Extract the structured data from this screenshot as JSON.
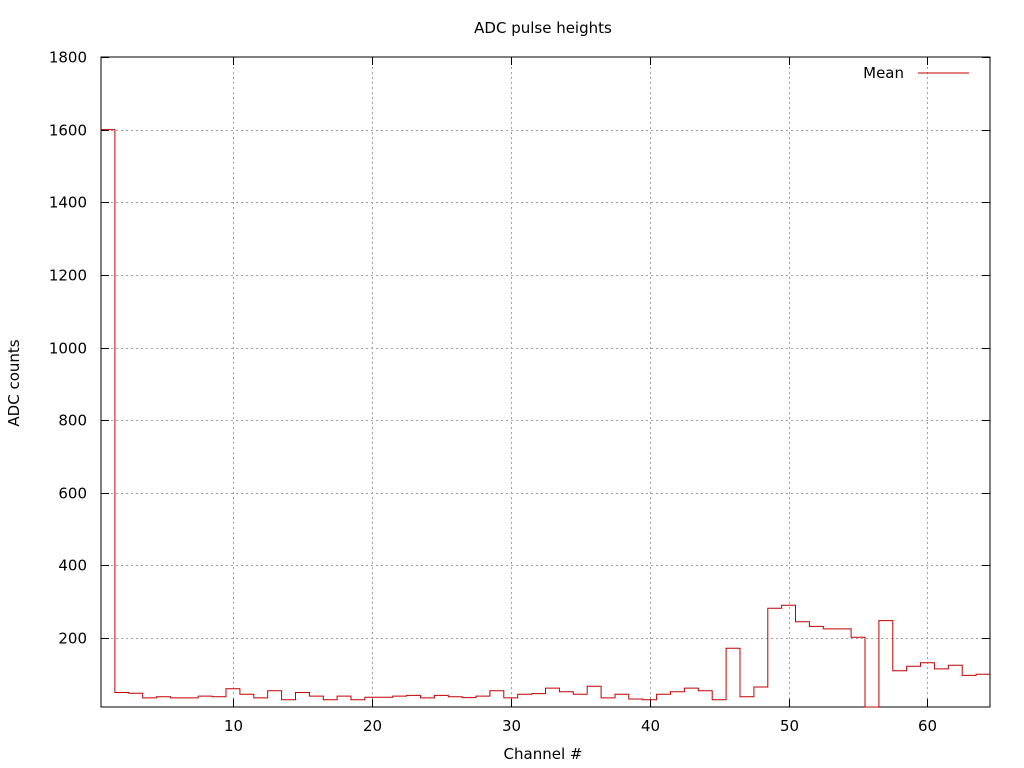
{
  "chart_data": {
    "type": "histogram",
    "title": "ADC pulse heights",
    "xlabel": "Channel #",
    "ylabel": "ADC counts",
    "xlim": [
      0.5,
      64.5
    ],
    "ylim": [
      10,
      1800
    ],
    "xticks": [
      10,
      20,
      30,
      40,
      50,
      60
    ],
    "yticks": [
      200,
      400,
      600,
      800,
      1000,
      1200,
      1400,
      1600,
      1800
    ],
    "grid": true,
    "legend_position": "top-right",
    "series": [
      {
        "name": "Mean",
        "color": "#c00000",
        "x": [
          1,
          2,
          3,
          4,
          5,
          6,
          7,
          8,
          9,
          10,
          11,
          12,
          13,
          14,
          15,
          16,
          17,
          18,
          19,
          20,
          21,
          22,
          23,
          24,
          25,
          26,
          27,
          28,
          29,
          30,
          31,
          32,
          33,
          34,
          35,
          36,
          37,
          38,
          39,
          40,
          41,
          42,
          43,
          44,
          45,
          46,
          47,
          48,
          49,
          50,
          51,
          52,
          53,
          54,
          55,
          56,
          57,
          58,
          59,
          60,
          61,
          62,
          63,
          64
        ],
        "values": [
          1600,
          50,
          48,
          35,
          38,
          35,
          35,
          40,
          38,
          60,
          45,
          35,
          55,
          30,
          50,
          40,
          30,
          40,
          30,
          37,
          37,
          40,
          42,
          35,
          42,
          38,
          36,
          40,
          55,
          35,
          45,
          47,
          62,
          52,
          45,
          67,
          35,
          45,
          32,
          30,
          45,
          52,
          62,
          55,
          30,
          172,
          38,
          65,
          282,
          290,
          245,
          232,
          225,
          225,
          202,
          5,
          248,
          110,
          122,
          132,
          115,
          125,
          97,
          100
        ]
      }
    ]
  }
}
